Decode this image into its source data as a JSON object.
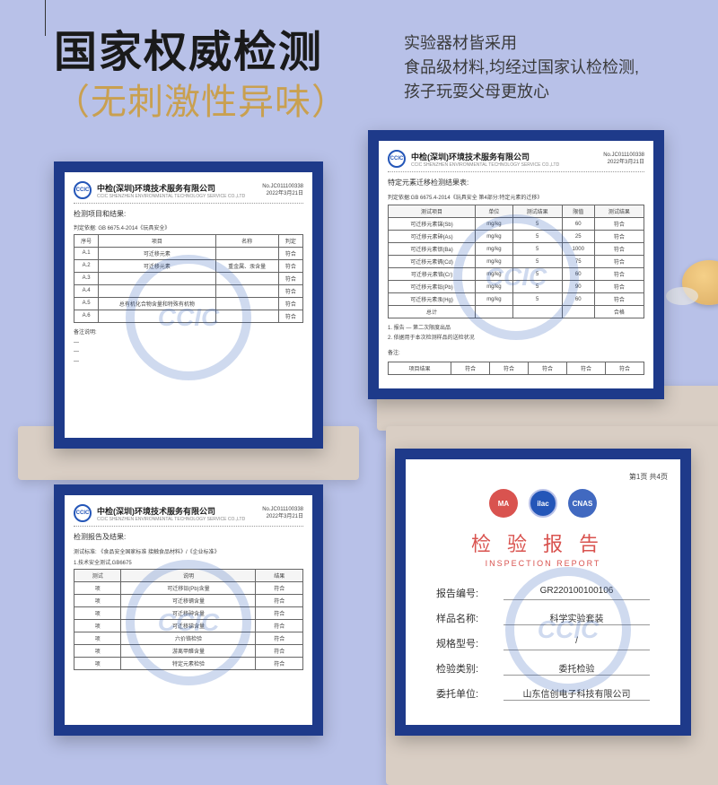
{
  "headline": {
    "main": "国家权威检测",
    "sub": "（无刺激性异味）"
  },
  "description": {
    "line1": "实验器材皆采用",
    "line2": "食品级材料,均经过国家认检检测,",
    "line3": "孩子玩耍父母更放心"
  },
  "colors": {
    "background": "#b8c1e8",
    "frame": "#1e3a8a",
    "accent_gold": "#c9a050",
    "ccic_blue": "#2456b8",
    "report_red": "#d9534f",
    "box": "#d9cec4"
  },
  "doc_common": {
    "org": "中检(深圳)环境技术服务有限公司",
    "org_en": "CCIC SHENZHEN ENVIRONMENTAL TECHNOLOGY SERVICE CO.,LTD",
    "logo_text": "CCIC",
    "meta_no": "No.JC011100338",
    "meta_date": "2022年3月21日"
  },
  "doc1": {
    "section_title": "检测项目和结果:",
    "standard": "判定依据: GB 6675.4-2014《玩具安全》",
    "table1_rows": [
      [
        "序号",
        "项目",
        "名称",
        "判定"
      ],
      [
        "A.1",
        "可迁移元素",
        "",
        "符合"
      ],
      [
        "A.2",
        "可迁移元素",
        "重金属、汞含量",
        "符合"
      ],
      [
        "A.3",
        "",
        "",
        "符合"
      ],
      [
        "A.4",
        "",
        "",
        "符合"
      ],
      [
        "A.5",
        "总有机化合物含量和特殊有机物",
        "",
        "符合"
      ],
      [
        "A.6",
        "",
        "",
        "符合"
      ]
    ]
  },
  "doc2": {
    "section_title": "特定元素迁移检测结果表:",
    "standard": "判定依据:GB 6675.4-2014《玩具安全 第4部分:特定元素的迁移》",
    "headers": [
      "测试项目",
      "单位",
      "测试结果",
      "限值",
      "测试结果"
    ],
    "rows": [
      [
        "可迁移元素锑(Sb)",
        "mg/kg",
        "5",
        "60",
        "符合"
      ],
      [
        "可迁移元素砷(As)",
        "mg/kg",
        "5",
        "25",
        "符合"
      ],
      [
        "可迁移元素钡(Ba)",
        "mg/kg",
        "5",
        "1000",
        "符合"
      ],
      [
        "可迁移元素镉(Cd)",
        "mg/kg",
        "5",
        "75",
        "符合"
      ],
      [
        "可迁移元素铬(Cr)",
        "mg/kg",
        "5",
        "60",
        "符合"
      ],
      [
        "可迁移元素铅(Pb)",
        "mg/kg",
        "5",
        "90",
        "符合"
      ],
      [
        "可迁移元素汞(Hg)",
        "mg/kg",
        "5",
        "60",
        "符合"
      ],
      [
        "总计",
        "",
        "",
        "",
        "合格"
      ]
    ],
    "notes": [
      "1. 报告 — 第二次限度出品",
      "2. 依据用于本次检测样品的送检状况"
    ],
    "remark": "备注:",
    "bottom_row": [
      "项目结果",
      "符合",
      "符合",
      "符合",
      "符合",
      "符合"
    ]
  },
  "doc3": {
    "section_title": "检测报告及结果:",
    "standard": "测试标准: 《食品安全国家标准 接触食品材料》/《企业标准》",
    "sub": "1.技术安全测试,GB6675",
    "headers": [
      "测试",
      "说明",
      "结果"
    ],
    "rows": [
      [
        "项",
        "可迁移铅(Pb)含量",
        "符合"
      ],
      [
        "项",
        "可迁移镉含量",
        "符合"
      ],
      [
        "项",
        "可迁移砷含量",
        "符合"
      ],
      [
        "项",
        "可迁移锑含量",
        "符合"
      ],
      [
        "项",
        "六价铬检验",
        "符合"
      ],
      [
        "项",
        "游离甲醛含量",
        "符合"
      ],
      [
        "项",
        "特定元素检验",
        "符合"
      ]
    ]
  },
  "doc4": {
    "top_right": "第1页 共4页",
    "badges": {
      "ma": "MA",
      "ilac": "ilac",
      "cnas": "CNAS"
    },
    "title_cn": "检验报告",
    "title_en": "INSPECTION REPORT",
    "fields": [
      {
        "label": "报告编号:",
        "value": "GR220100100106"
      },
      {
        "label": "样品名称:",
        "value": "科学实验套装"
      },
      {
        "label": "规格型号:",
        "value": "/"
      },
      {
        "label": "检验类别:",
        "value": "委托检验"
      },
      {
        "label": "委托单位:",
        "value": "山东信创电子科技有限公司"
      }
    ],
    "issuer": "山东信创电子科技有限公司"
  }
}
